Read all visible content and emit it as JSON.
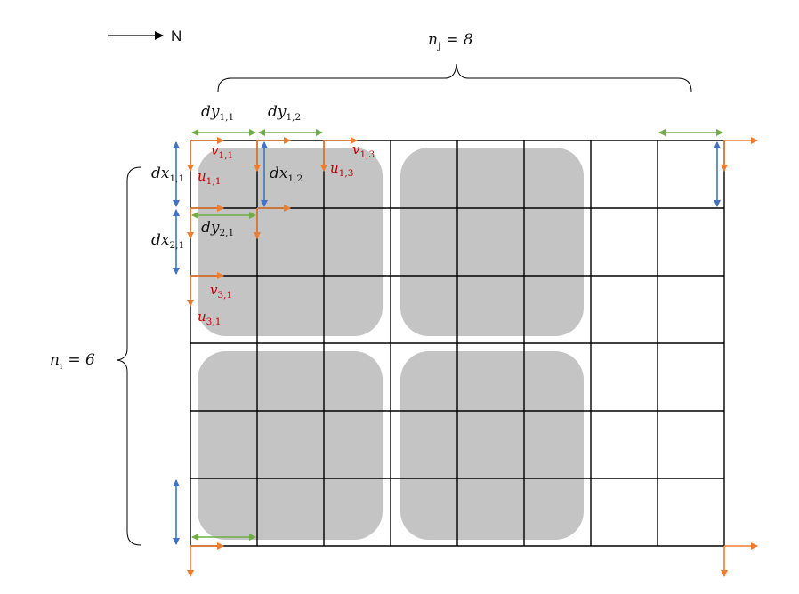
{
  "colors": {
    "grid": "#000000",
    "building": "#c4c4c4",
    "orange_arrow": "#ed7d31",
    "blue_arrow": "#4472c4",
    "green_arrow": "#70ad47",
    "red_label": "#c00000"
  },
  "north": {
    "label": "N"
  },
  "nj": {
    "label": "n",
    "sub": "j",
    "value": "= 8"
  },
  "ni": {
    "label": "n",
    "sub": "i",
    "value": "= 6"
  },
  "labels": {
    "dy11": {
      "base": "dy",
      "sub": "1,1"
    },
    "dy12": {
      "base": "dy",
      "sub": "1,2"
    },
    "dy21": {
      "base": "dy",
      "sub": "2,1"
    },
    "dx11": {
      "base": "dx",
      "sub": "1,1"
    },
    "dx12": {
      "base": "dx",
      "sub": "1,2"
    },
    "dx21": {
      "base": "dx",
      "sub": "2,1"
    },
    "v11": {
      "base": "v",
      "sub": "1,1"
    },
    "v13": {
      "base": "v",
      "sub": "1,3"
    },
    "v31": {
      "base": "v",
      "sub": "3,1"
    },
    "u11": {
      "base": "u",
      "sub": "1,1"
    },
    "u13": {
      "base": "u",
      "sub": "1,3"
    },
    "u31": {
      "base": "u",
      "sub": "3,1"
    }
  }
}
